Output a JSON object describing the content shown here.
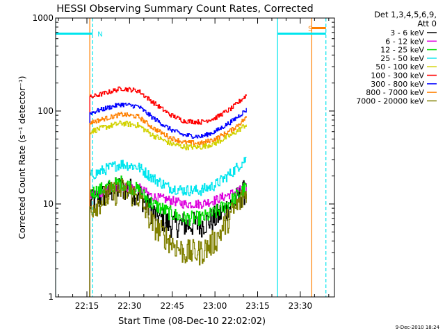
{
  "chart_data": {
    "type": "line",
    "title": "HESSI Observing Summary Count Rates, Corrected",
    "xlabel": "Start Time (08-Dec-10 22:02:02)",
    "ylabel": "Corrected Count Rate (s⁻¹ detector⁻¹)",
    "yscale": "log",
    "xlim": [
      "22:04",
      "23:42"
    ],
    "ylim": [
      1,
      1000
    ],
    "x_ticks": [
      "22:15",
      "22:30",
      "22:45",
      "23:00",
      "23:15",
      "23:30"
    ],
    "y_ticks": [
      {
        "value": 1,
        "label": "1"
      },
      {
        "value": 10,
        "label": "10"
      },
      {
        "value": 100,
        "label": "100"
      },
      {
        "value": 1000,
        "label": "1000"
      }
    ],
    "legend_header": [
      "Det 1,3,4,5,6,9,",
      "Att 0"
    ],
    "legend_placement": "right",
    "data_span": [
      "22:16",
      "23:11"
    ],
    "x_samples": [
      "22:16",
      "22:22",
      "22:27",
      "22:33",
      "22:38",
      "22:44",
      "22:49",
      "22:55",
      "23:00",
      "23:06",
      "23:11"
    ],
    "series": [
      {
        "name": "3 - 6 keV",
        "color": "#000000",
        "noise": 0.14,
        "values": [
          10,
          13,
          15,
          13,
          8,
          6,
          6,
          6,
          7,
          10,
          14
        ]
      },
      {
        "name": "6 - 12 keV",
        "color": "#dd00dd",
        "noise": 0.05,
        "values": [
          12,
          14,
          15,
          15,
          12,
          11,
          10,
          10,
          11,
          13,
          15
        ]
      },
      {
        "name": "12 - 25 keV",
        "color": "#00dd00",
        "noise": 0.08,
        "values": [
          13,
          15,
          17,
          14,
          10,
          8,
          7,
          7,
          8,
          11,
          15
        ]
      },
      {
        "name": "25 - 50 keV",
        "color": "#00e5ee",
        "noise": 0.06,
        "values": [
          20,
          24,
          27,
          25,
          19,
          15,
          14,
          14,
          16,
          22,
          31
        ]
      },
      {
        "name": "50 - 100 keV",
        "color": "#d2d200",
        "noise": 0.03,
        "values": [
          60,
          68,
          74,
          70,
          55,
          45,
          41,
          41,
          45,
          56,
          72
        ]
      },
      {
        "name": "100 - 300 keV",
        "color": "#ff0000",
        "noise": 0.025,
        "values": [
          140,
          158,
          175,
          165,
          125,
          92,
          78,
          76,
          84,
          108,
          148
        ]
      },
      {
        "name": "300 - 800 keV",
        "color": "#0000ff",
        "noise": 0.025,
        "values": [
          95,
          108,
          118,
          112,
          85,
          64,
          55,
          53,
          60,
          78,
          103
        ]
      },
      {
        "name": "800 - 7000 keV",
        "color": "#ff8000",
        "noise": 0.025,
        "values": [
          75,
          84,
          92,
          87,
          66,
          52,
          46,
          45,
          50,
          63,
          85
        ]
      },
      {
        "name": "7000 - 20000 keV",
        "color": "#808000",
        "noise": 0.14,
        "values": [
          9,
          12,
          14,
          12,
          6,
          4,
          3,
          3,
          4,
          8,
          13
        ]
      }
    ],
    "vertical_lines": [
      {
        "time": "22:04",
        "color": "#00e5ee",
        "style": "solid"
      },
      {
        "time": "22:16",
        "color": "#ff8000",
        "style": "solid"
      },
      {
        "time": "22:17",
        "color": "#00e5ee",
        "style": "dashed"
      },
      {
        "time": "23:22",
        "color": "#00e5ee",
        "style": "solid"
      },
      {
        "time": "23:34",
        "color": "#ff8000",
        "style": "solid"
      },
      {
        "time": "23:39",
        "color": "#00e5ee",
        "style": "dashed"
      }
    ],
    "horizontal_bars": [
      {
        "from": "22:04",
        "to": "22:17",
        "value": 680,
        "color": "#00e5ee"
      },
      {
        "from": "23:22",
        "to": "23:39",
        "value": 680,
        "color": "#00e5ee"
      },
      {
        "from": "23:34",
        "to": "23:39",
        "value": 780,
        "color": "#ff8000"
      }
    ],
    "annotations": [
      {
        "text": "N",
        "time": "22:18",
        "value": 680,
        "color": "#00e5ee"
      },
      {
        "text": "S",
        "time": "23:32",
        "value": 780,
        "color": "#ff8000"
      }
    ]
  },
  "footer": {
    "timestamp": "9-Dec-2010 18:24"
  }
}
